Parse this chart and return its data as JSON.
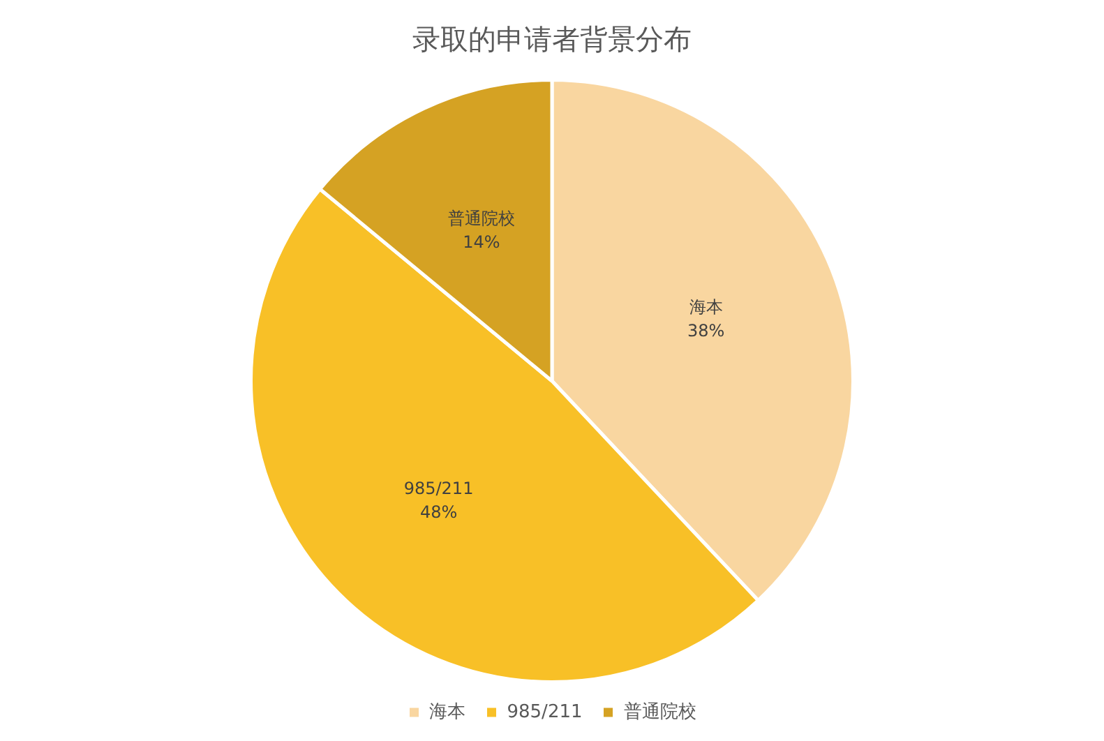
{
  "chart_data": {
    "type": "pie",
    "title": "录取的申请者背景分布",
    "categories": [
      "海本",
      "985/211",
      "普通院校"
    ],
    "values": [
      38,
      48,
      14
    ],
    "colors": [
      "#f9d6a0",
      "#f8c027",
      "#d5a223"
    ],
    "value_labels": [
      "38%",
      "48%",
      "14%"
    ],
    "legend": "bottom"
  }
}
